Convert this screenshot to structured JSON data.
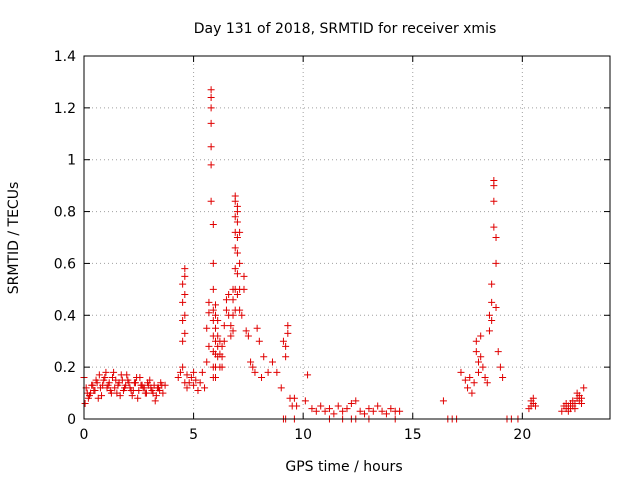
{
  "chart_data": {
    "type": "scatter",
    "title": "Day 131 of 2018, SRMTID for receiver xmis",
    "xlabel": "GPS time / hours",
    "ylabel": "SRMTID / TECUs",
    "xlim": [
      0,
      24
    ],
    "ylim": [
      0,
      1.4
    ],
    "xticks": [
      0,
      5,
      10,
      15,
      20
    ],
    "yticks": [
      0,
      0.2,
      0.4,
      0.6,
      0.8,
      1,
      1.2,
      1.4
    ],
    "xtick_labels": [
      "0",
      "5",
      "10",
      "15",
      "20"
    ],
    "ytick_labels": [
      "0",
      "0.2",
      "0.4",
      "0.6",
      "0.8",
      "1",
      "1.2",
      "1.4"
    ],
    "grid": true,
    "marker": "plus",
    "color": "#e00000",
    "series": [
      {
        "name": "SRMTID",
        "x": [
          0.0,
          0.1,
          0.2,
          0.3,
          0.4,
          0.5,
          0.6,
          0.7,
          0.8,
          0.9,
          1.0,
          1.1,
          1.2,
          1.3,
          1.4,
          1.5,
          1.6,
          1.7,
          1.8,
          1.9,
          2.0,
          2.1,
          2.2,
          2.3,
          2.4,
          2.5,
          2.6,
          2.7,
          2.8,
          2.9,
          3.0,
          3.1,
          3.2,
          3.3,
          3.4,
          3.5,
          3.6,
          3.7,
          0.05,
          0.25,
          0.45,
          0.65,
          0.85,
          1.05,
          1.25,
          1.45,
          1.65,
          1.85,
          2.05,
          2.25,
          2.45,
          2.65,
          2.85,
          3.05,
          3.25,
          3.45,
          0.15,
          0.35,
          0.55,
          0.75,
          0.95,
          1.15,
          1.35,
          1.55,
          1.75,
          1.95,
          2.15,
          2.35,
          2.55,
          2.75,
          2.95,
          3.15,
          3.35,
          3.55,
          4.3,
          4.4,
          4.5,
          4.5,
          4.5,
          4.5,
          4.5,
          4.6,
          4.6,
          4.6,
          4.6,
          4.6,
          4.6,
          4.7,
          4.7,
          4.8,
          4.9,
          5.0,
          5.0,
          5.1,
          5.2,
          5.3,
          5.4,
          5.5,
          5.6,
          5.6,
          5.7,
          5.7,
          5.7,
          5.8,
          5.8,
          5.8,
          5.8,
          5.8,
          5.8,
          5.8,
          5.9,
          5.9,
          5.9,
          5.9,
          5.9,
          5.9,
          5.9,
          5.9,
          5.9,
          6.0,
          6.0,
          6.0,
          6.0,
          6.0,
          6.0,
          6.0,
          6.1,
          6.1,
          6.1,
          6.1,
          6.2,
          6.2,
          6.2,
          6.3,
          6.3,
          6.3,
          6.4,
          6.4,
          6.5,
          6.5,
          6.6,
          6.6,
          6.7,
          6.7,
          6.8,
          6.8,
          6.8,
          6.8,
          6.9,
          6.9,
          6.9,
          6.9,
          6.9,
          6.9,
          6.9,
          6.9,
          7.0,
          7.0,
          7.0,
          7.0,
          7.0,
          7.0,
          7.0,
          7.1,
          7.1,
          7.1,
          7.1,
          7.2,
          7.3,
          7.3,
          7.4,
          7.5,
          7.6,
          7.7,
          7.8,
          7.9,
          8.0,
          8.1,
          8.2,
          8.4,
          8.6,
          8.8,
          9.0,
          9.1,
          9.2,
          9.2,
          9.3,
          9.3,
          9.4,
          9.5,
          9.6,
          9.7,
          10.1,
          10.2,
          10.4,
          10.6,
          10.8,
          11.0,
          11.2,
          11.4,
          11.6,
          11.8,
          12.0,
          12.2,
          12.4,
          12.6,
          12.8,
          13.0,
          13.2,
          13.4,
          13.6,
          13.8,
          14.0,
          14.2,
          14.4,
          9.1,
          9.2,
          9.6,
          11.2,
          11.8,
          12.2,
          12.4,
          13.0,
          14.2,
          16.4,
          16.6,
          16.8,
          17.0,
          17.2,
          17.4,
          17.5,
          17.6,
          17.7,
          17.8,
          17.9,
          17.9,
          18.0,
          18.0,
          18.1,
          18.1,
          18.2,
          18.3,
          18.4,
          18.5,
          18.5,
          18.6,
          18.6,
          18.6,
          18.7,
          18.7,
          18.7,
          18.7,
          18.8,
          18.8,
          18.8,
          18.9,
          19.0,
          19.1,
          19.3,
          19.5,
          19.8,
          20.3,
          20.4,
          20.4,
          20.5,
          20.5,
          20.6,
          21.8,
          21.9,
          22.0,
          22.0,
          22.1,
          22.1,
          22.2,
          22.2,
          22.3,
          22.3,
          22.4,
          22.4,
          22.5,
          22.5,
          22.6,
          22.6,
          22.7,
          22.7,
          22.8
        ],
        "y": [
          0.16,
          0.12,
          0.08,
          0.1,
          0.13,
          0.11,
          0.14,
          0.17,
          0.09,
          0.15,
          0.18,
          0.13,
          0.11,
          0.16,
          0.12,
          0.1,
          0.14,
          0.17,
          0.11,
          0.13,
          0.15,
          0.12,
          0.09,
          0.14,
          0.16,
          0.11,
          0.13,
          0.12,
          0.1,
          0.14,
          0.15,
          0.11,
          0.13,
          0.09,
          0.12,
          0.14,
          0.1,
          0.13,
          0.06,
          0.09,
          0.11,
          0.08,
          0.13,
          0.12,
          0.1,
          0.15,
          0.09,
          0.12,
          0.14,
          0.11,
          0.08,
          0.13,
          0.1,
          0.12,
          0.07,
          0.11,
          0.1,
          0.13,
          0.15,
          0.12,
          0.16,
          0.14,
          0.18,
          0.13,
          0.15,
          0.17,
          0.11,
          0.14,
          0.16,
          0.12,
          0.13,
          0.1,
          0.12,
          0.13,
          0.16,
          0.18,
          0.2,
          0.3,
          0.38,
          0.45,
          0.52,
          0.55,
          0.58,
          0.48,
          0.4,
          0.33,
          0.14,
          0.17,
          0.12,
          0.14,
          0.16,
          0.13,
          0.18,
          0.15,
          0.11,
          0.14,
          0.18,
          0.12,
          0.22,
          0.35,
          0.28,
          0.41,
          0.45,
          1.27,
          1.24,
          1.2,
          1.14,
          1.05,
          0.98,
          0.84,
          0.75,
          0.6,
          0.5,
          0.42,
          0.38,
          0.32,
          0.26,
          0.2,
          0.16,
          0.44,
          0.4,
          0.35,
          0.3,
          0.25,
          0.2,
          0.16,
          0.38,
          0.32,
          0.28,
          0.24,
          0.3,
          0.25,
          0.2,
          0.28,
          0.24,
          0.2,
          0.3,
          0.36,
          0.46,
          0.42,
          0.48,
          0.4,
          0.36,
          0.32,
          0.5,
          0.46,
          0.4,
          0.34,
          0.86,
          0.84,
          0.78,
          0.72,
          0.66,
          0.58,
          0.5,
          0.42,
          0.82,
          0.8,
          0.76,
          0.7,
          0.64,
          0.56,
          0.48,
          0.72,
          0.6,
          0.5,
          0.42,
          0.4,
          0.55,
          0.5,
          0.34,
          0.32,
          0.22,
          0.2,
          0.18,
          0.35,
          0.3,
          0.16,
          0.24,
          0.18,
          0.22,
          0.18,
          0.12,
          0.3,
          0.28,
          0.24,
          0.36,
          0.33,
          0.08,
          0.05,
          0.08,
          0.05,
          0.07,
          0.17,
          0.04,
          0.03,
          0.05,
          0.03,
          0.04,
          0.02,
          0.05,
          0.03,
          0.04,
          0.06,
          0.07,
          0.03,
          0.02,
          0.04,
          0.03,
          0.05,
          0.03,
          0.02,
          0.04,
          0.03,
          0.03,
          0.0,
          0.0,
          0.0,
          0.0,
          0.0,
          0.0,
          0.0,
          0.0,
          0.0,
          0.07,
          0.0,
          0.0,
          0.0,
          0.18,
          0.15,
          0.12,
          0.16,
          0.1,
          0.14,
          0.26,
          0.3,
          0.22,
          0.18,
          0.32,
          0.24,
          0.2,
          0.16,
          0.14,
          0.34,
          0.4,
          0.52,
          0.45,
          0.38,
          0.92,
          0.9,
          0.84,
          0.74,
          0.7,
          0.6,
          0.43,
          0.26,
          0.2,
          0.16,
          0.0,
          0.0,
          0.0,
          0.04,
          0.05,
          0.07,
          0.06,
          0.08,
          0.05,
          0.03,
          0.05,
          0.04,
          0.06,
          0.03,
          0.05,
          0.04,
          0.06,
          0.05,
          0.07,
          0.04,
          0.06,
          0.08,
          0.1,
          0.07,
          0.09,
          0.06,
          0.08,
          0.12
        ]
      }
    ]
  }
}
